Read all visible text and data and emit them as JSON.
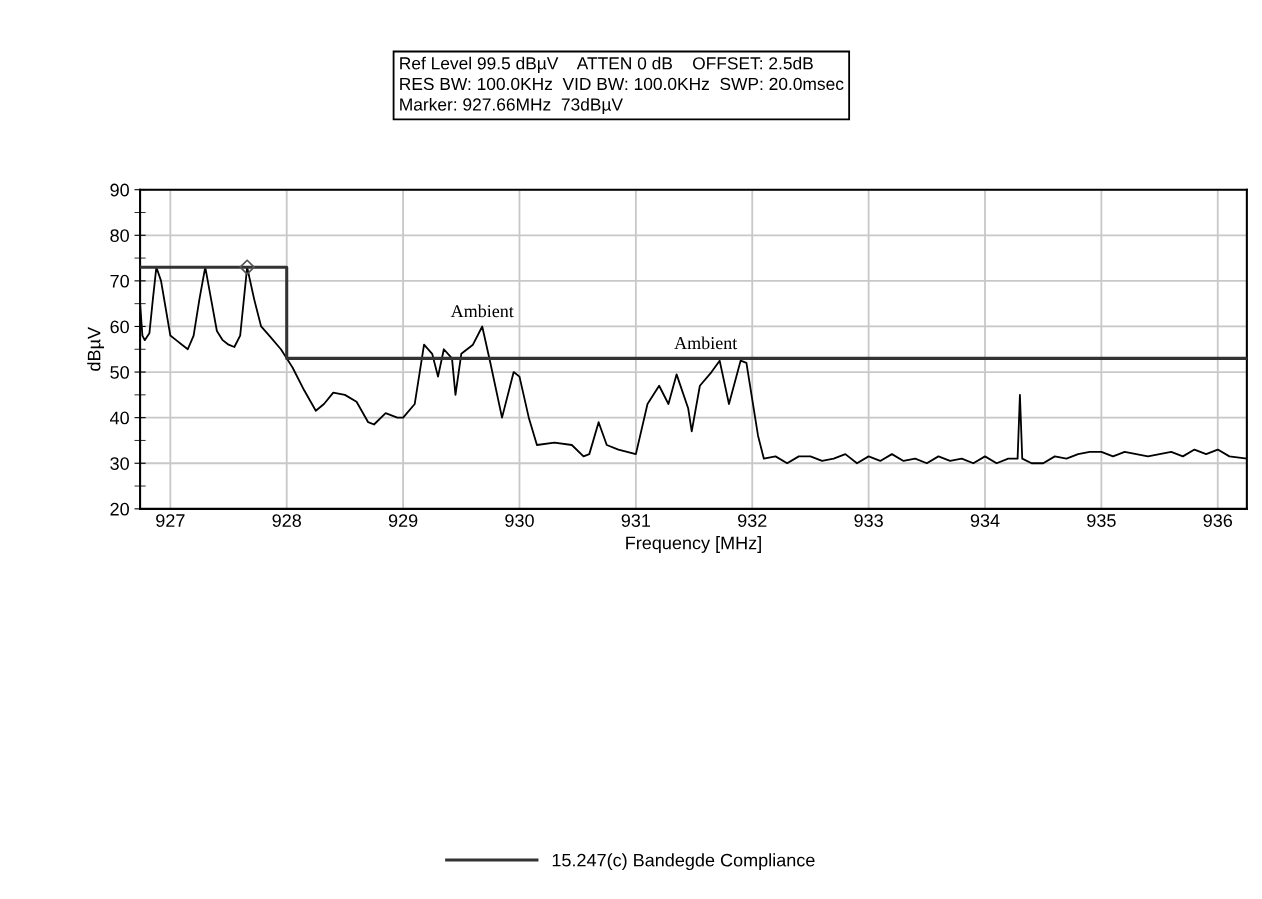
{
  "chart_data": {
    "type": "line",
    "xlabel": "Frequency [MHz]",
    "ylabel": "dBµV",
    "xlim": [
      926.74,
      936.25
    ],
    "xticks": [
      927,
      928,
      929,
      930,
      931,
      932,
      933,
      934,
      935,
      936
    ],
    "ylim": [
      20,
      90
    ],
    "yticks": [
      20,
      {
        "value": 25,
        "label": null
      },
      30,
      {
        "value": 35,
        "label": null
      },
      40,
      {
        "value": 45,
        "label": null
      },
      50,
      {
        "value": 55,
        "label": null
      },
      60,
      {
        "value": 65,
        "label": null
      },
      70,
      {
        "value": 75,
        "label": null
      },
      80,
      {
        "value": 85,
        "label": null
      },
      90
    ],
    "grid": true,
    "legend": "bottom",
    "series": [
      {
        "color": "#000000",
        "x": [
          926.74,
          926.76,
          926.78,
          926.82,
          926.85,
          926.88,
          926.92,
          926.96,
          927.0,
          927.05,
          927.1,
          927.15,
          927.2,
          927.25,
          927.3,
          927.35,
          927.4,
          927.45,
          927.5,
          927.55,
          927.6,
          927.66,
          927.72,
          927.78,
          927.85,
          927.95,
          928.0,
          928.05,
          928.15,
          928.25,
          928.32,
          928.4,
          928.5,
          928.6,
          928.7,
          928.75,
          928.85,
          928.95,
          929.0,
          929.1,
          929.18,
          929.25,
          929.3,
          929.35,
          929.42,
          929.45,
          929.5,
          929.6,
          929.68,
          929.75,
          929.85,
          929.95,
          930.0,
          930.08,
          930.15,
          930.3,
          930.45,
          930.55,
          930.6,
          930.68,
          930.75,
          930.85,
          931.0,
          931.1,
          931.2,
          931.28,
          931.35,
          931.45,
          931.48,
          931.55,
          931.65,
          931.72,
          931.8,
          931.9,
          931.95,
          932.05,
          932.1,
          932.2,
          932.3,
          932.4,
          932.5,
          932.6,
          932.7,
          932.8,
          932.9,
          933.0,
          933.1,
          933.2,
          933.3,
          933.4,
          933.5,
          933.6,
          933.7,
          933.8,
          933.9,
          934.0,
          934.1,
          934.2,
          934.28,
          934.3,
          934.32,
          934.4,
          934.5,
          934.6,
          934.7,
          934.8,
          934.9,
          935.0,
          935.1,
          935.2,
          935.3,
          935.4,
          935.5,
          935.6,
          935.7,
          935.8,
          935.9,
          936.0,
          936.1,
          936.25
        ],
        "values": [
          65,
          58,
          57,
          58.5,
          66,
          73,
          70,
          64,
          58,
          57,
          56,
          55,
          58,
          66,
          73,
          66,
          59,
          57,
          56,
          55.5,
          58,
          73,
          66,
          60,
          58,
          55,
          53,
          51,
          46,
          41.5,
          43,
          45.5,
          45,
          43.5,
          39,
          38.5,
          41,
          40,
          40,
          43,
          56,
          54,
          49,
          55,
          53,
          45,
          54,
          56,
          60,
          52,
          40,
          50,
          49,
          40,
          34,
          34.5,
          34,
          31.5,
          32,
          39,
          34,
          33,
          32,
          43,
          47,
          43,
          49.5,
          42,
          37,
          47,
          50,
          52.5,
          43,
          52.5,
          52,
          36,
          31,
          31.5,
          30,
          31.5,
          31.5,
          30.5,
          31,
          32,
          30,
          31.5,
          30.5,
          32,
          30.5,
          31,
          30,
          31.5,
          30.5,
          31,
          30,
          31.5,
          30,
          31,
          31,
          45,
          31,
          30,
          30,
          31.5,
          31,
          32,
          32.5,
          32.5,
          31.5,
          32.5,
          32,
          31.5,
          32,
          32.5,
          31.5,
          33,
          32,
          33,
          31.5,
          31
        ]
      },
      {
        "name": "15.247(c) Bandegde Compliance",
        "color": "#333333",
        "x": [
          926.74,
          928.0,
          928.0,
          936.25
        ],
        "values": [
          73,
          73,
          53,
          53
        ]
      },
      {
        "color": "#555555",
        "type": "scatter",
        "marker": "diamond",
        "x": [
          927.66
        ],
        "values": [
          73
        ]
      }
    ],
    "annotations": [
      "Ref Level 99.5 dBµV    ATTEN 0 dB    OFFSET: 2.5dB",
      "RES BW: 100.0KHz  VID BW: 100.0KHz  SWP: 20.0msec",
      "Marker: 927.66MHz  73dBµV",
      {
        "text": "Ambient",
        "x": 929.68,
        "y": 60
      },
      {
        "text": "Ambient",
        "x": 931.6,
        "y": 53
      }
    ]
  }
}
